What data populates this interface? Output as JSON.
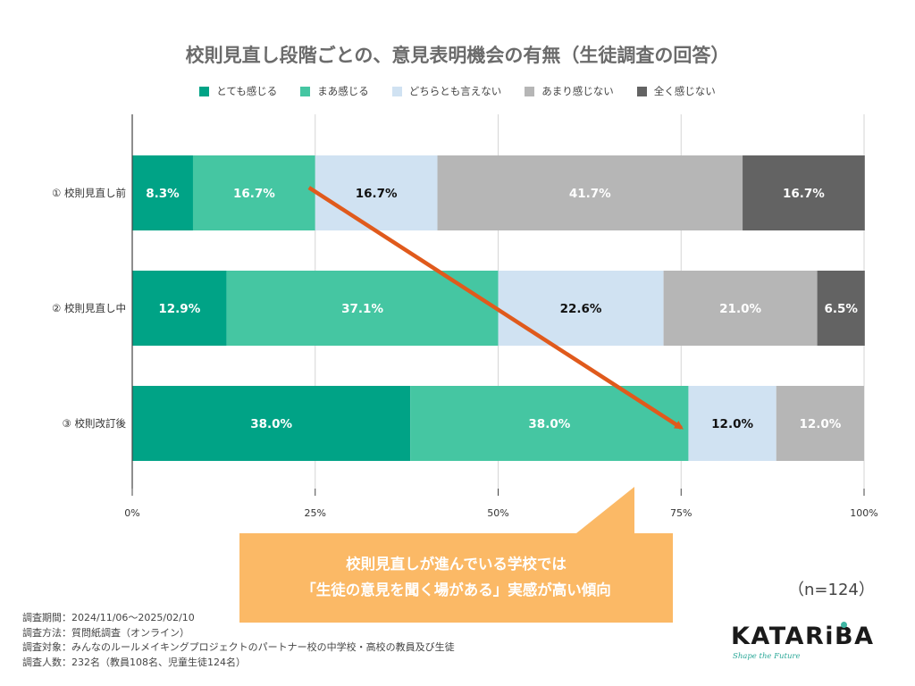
{
  "chart_data": {
    "type": "bar",
    "orientation": "horizontal",
    "stacked": true,
    "title": "校則見直し段階ごとの、意見表明機会の有無（生徒調査の回答）",
    "categories": [
      "① 校則見直し前",
      "② 校則見直し中",
      "③ 校則改訂後"
    ],
    "series": [
      {
        "name": "とても感じる",
        "color": "#00a386",
        "label_color": "#ffffff",
        "values": [
          8.3,
          12.9,
          38.0
        ],
        "labels": [
          "8.3%",
          "12.9%",
          "38.0%"
        ]
      },
      {
        "name": "まあ感じる",
        "color": "#45c6a2",
        "label_color": "#ffffff",
        "values": [
          16.7,
          37.1,
          38.0
        ],
        "labels": [
          "16.7%",
          "37.1%",
          "38.0%"
        ]
      },
      {
        "name": "どちらとも言えない",
        "color": "#d0e2f2",
        "label_color": "#111111",
        "values": [
          16.7,
          22.6,
          12.0
        ],
        "labels": [
          "16.7%",
          "22.6%",
          "12.0%"
        ]
      },
      {
        "name": "あまり感じない",
        "color": "#b6b6b6",
        "label_color": "#ffffff",
        "values": [
          41.7,
          21.0,
          12.0
        ],
        "labels": [
          "41.7%",
          "21.0%",
          "12.0%"
        ]
      },
      {
        "name": "全く感じない",
        "color": "#636363",
        "label_color": "#ffffff",
        "values": [
          16.7,
          6.5,
          0
        ],
        "labels": [
          "16.7%",
          "6.5%",
          ""
        ]
      }
    ],
    "x_ticks": [
      0,
      25,
      50,
      75,
      100
    ],
    "x_tick_labels": [
      "0%",
      "25%",
      "50%",
      "75%",
      "100%"
    ],
    "xlim": [
      0,
      100
    ],
    "grid": true,
    "legend_position": "top",
    "arrow": {
      "color": "#e05a1c",
      "from": {
        "category": "① 校則見直し前",
        "value": 25
      },
      "to": {
        "category": "③ 校則改訂後",
        "value": 76
      }
    }
  },
  "callout": {
    "line1": "校則見直しが進んでいる学校では",
    "line2": "「生徒の意見を聞く場がある」実感が高い傾向",
    "color": "#fbb966"
  },
  "sample_size": "（n=124）",
  "footnotes": [
    "調査期間：2024/11/06〜2025/02/10",
    "調査方法：質問紙調査（オンライン）",
    "調査対象：みんなのルールメイキングプロジェクトのパートナー校の中学校・高校の教員及び生徒",
    "調査人数：232名（教員108名、児童生徒124名）"
  ],
  "logo": {
    "wordmark": "KATARiBA",
    "tagline": "Shape the Future",
    "accent_color": "#3fb6a3"
  }
}
